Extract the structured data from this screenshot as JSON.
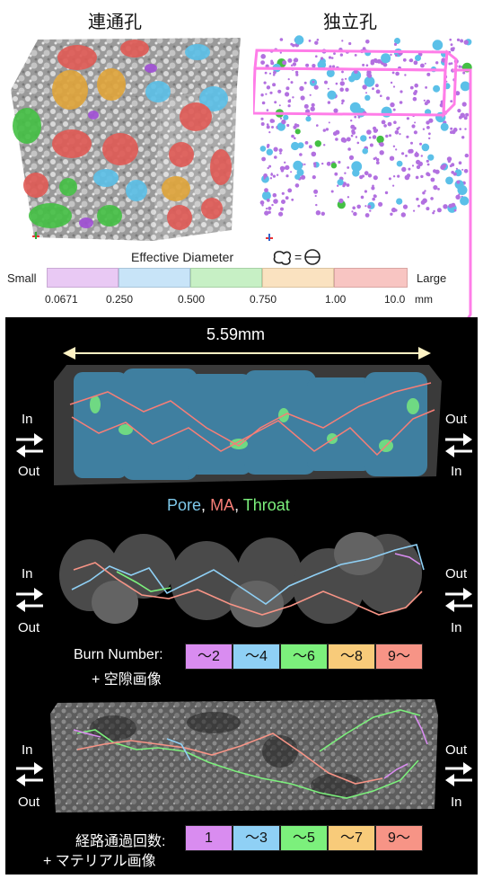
{
  "top": {
    "left_title": "連通孔",
    "right_title": "独立孔",
    "legend_title": "Effective Diameter",
    "eq_sign": "=",
    "scale_small": "Small",
    "scale_large": "Large",
    "scale_colors": [
      "#e9c9f4",
      "#c8e4f8",
      "#c7f0c5",
      "#fae2c0",
      "#f8c5c2"
    ],
    "ticks": [
      "0.0671",
      "0.250",
      "0.500",
      "0.750",
      "1.00",
      "10.0"
    ],
    "unit": "mm"
  },
  "bottom": {
    "scale_text": "5.59mm",
    "in": "In",
    "out": "Out",
    "caption_pore": "Pore",
    "caption_ma": "MA",
    "caption_throat": "Throat",
    "comma": ",",
    "burn_label": "Burn Number:",
    "burn_sub": "+ 空隙画像",
    "burn_cells": [
      "〜2",
      "〜4",
      "〜6",
      "〜8",
      "9〜"
    ],
    "path_label": "経路通過回数:",
    "path_sub": "+ マテリアル画像",
    "path_cells": [
      "1",
      "〜3",
      "〜5",
      "〜7",
      "9〜"
    ],
    "legend_colors": [
      "#d98cf0",
      "#8fd0f5",
      "#7cf07c",
      "#f8cb7a",
      "#f79486"
    ],
    "pore_color": "#7ec8ea",
    "ma_color": "#f77e77",
    "throat_color": "#7cf07c"
  }
}
